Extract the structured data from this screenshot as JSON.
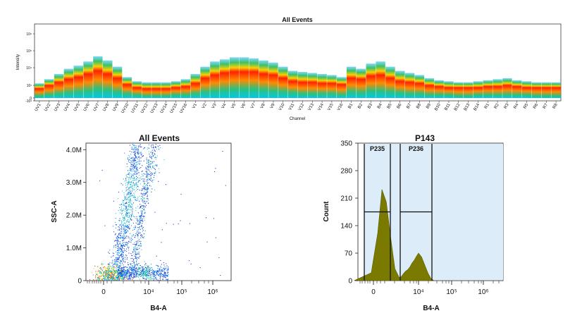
{
  "spectrum": {
    "title": "All Events",
    "ylabel": "Intensity",
    "xlabel": "Channel",
    "ytick_labels": [
      "10⁶",
      "10⁵",
      "10⁴",
      "10¹",
      "0",
      "-10³"
    ],
    "channels": [
      "UV1",
      "UV2",
      "UV3",
      "UV4",
      "UV5",
      "UV6",
      "UV7",
      "UV8",
      "UV9",
      "UV10",
      "UV11",
      "UV12",
      "UV13",
      "UV14",
      "UV15",
      "UV16",
      "V1",
      "V2",
      "V3",
      "V4",
      "V5",
      "V6",
      "V7",
      "V8",
      "V9",
      "V10",
      "V11",
      "V12",
      "V13",
      "V14",
      "V15",
      "V16",
      "B1",
      "B2",
      "B3",
      "B4",
      "B5",
      "B6",
      "B7",
      "B8",
      "B9",
      "B10",
      "B11",
      "B12",
      "B13",
      "B14",
      "R1",
      "R2",
      "R3",
      "R4",
      "R5",
      "R6",
      "R7",
      "R8"
    ]
  },
  "chart_data": [
    {
      "type": "heatmap",
      "title": "All Events",
      "xlabel": "Channel",
      "ylabel": "Intensity",
      "categories": [
        "UV1",
        "UV2",
        "UV3",
        "UV4",
        "UV5",
        "UV6",
        "UV7",
        "UV8",
        "UV9",
        "UV10",
        "UV11",
        "UV12",
        "UV13",
        "UV14",
        "UV15",
        "UV16",
        "V1",
        "V2",
        "V3",
        "V4",
        "V5",
        "V6",
        "V7",
        "V8",
        "V9",
        "V10",
        "V11",
        "V12",
        "V13",
        "V14",
        "V15",
        "V16",
        "B1",
        "B2",
        "B3",
        "B4",
        "B5",
        "B6",
        "B7",
        "B8",
        "B9",
        "B10",
        "B11",
        "B12",
        "B13",
        "B14",
        "R1",
        "R2",
        "R3",
        "R4",
        "R5",
        "R6",
        "R7",
        "R8"
      ],
      "upper_log10": [
        1.4,
        1.8,
        2.3,
        2.8,
        3.1,
        3.5,
        4.0,
        3.6,
        3.0,
        2.0,
        1.6,
        1.5,
        1.5,
        1.5,
        1.6,
        1.8,
        2.3,
        3.0,
        3.5,
        3.7,
        3.9,
        3.9,
        3.8,
        3.6,
        3.4,
        3.0,
        2.6,
        2.5,
        2.4,
        2.3,
        2.2,
        2.0,
        3.0,
        2.8,
        3.3,
        3.5,
        3.0,
        2.6,
        2.4,
        2.2,
        1.9,
        1.7,
        1.6,
        1.5,
        1.5,
        1.6,
        1.7,
        1.8,
        1.9,
        1.7,
        1.6,
        1.5,
        1.5,
        1.5
      ],
      "core_log10": [
        0.9,
        1.2,
        1.5,
        1.8,
        2.0,
        2.3,
        2.6,
        2.3,
        1.9,
        1.3,
        1.0,
        0.9,
        0.9,
        0.9,
        1.0,
        1.1,
        1.4,
        1.9,
        2.2,
        2.4,
        2.5,
        2.5,
        2.5,
        2.3,
        2.2,
        1.9,
        1.6,
        1.5,
        1.5,
        1.4,
        1.4,
        1.3,
        1.9,
        1.8,
        2.1,
        2.2,
        1.9,
        1.6,
        1.5,
        1.4,
        1.2,
        1.1,
        1.0,
        1.0,
        1.0,
        1.0,
        1.1,
        1.1,
        1.2,
        1.1,
        1.0,
        1.0,
        1.0,
        1.0
      ],
      "lower_log10": [
        0.2,
        0.3,
        0.4,
        0.5,
        0.6,
        0.7,
        0.9,
        0.8,
        0.6,
        0.4,
        0.3,
        0.2,
        0.2,
        0.2,
        0.3,
        0.3,
        0.4,
        0.6,
        0.7,
        0.8,
        0.9,
        0.9,
        0.9,
        0.8,
        0.7,
        0.6,
        0.5,
        0.4,
        0.4,
        0.4,
        0.4,
        0.3,
        0.6,
        0.5,
        0.7,
        0.7,
        0.6,
        0.5,
        0.4,
        0.4,
        0.3,
        0.3,
        0.3,
        0.2,
        0.2,
        0.3,
        0.3,
        0.3,
        0.3,
        0.3,
        0.3,
        0.2,
        0.2,
        0.2
      ]
    },
    {
      "type": "scatter",
      "title": "All Events",
      "xlabel": "B4-A",
      "ylabel": "SSC-A",
      "xtick_labels": [
        "0",
        "10⁴",
        "10⁵",
        "10⁶"
      ],
      "ytick_labels": [
        "0",
        "1.0M",
        "2.0M",
        "3.0M",
        "4.0M"
      ],
      "ylim": [
        0,
        4200000
      ],
      "populations": [
        {
          "x_log10_center": 2.3,
          "y_center": 180000,
          "y_spread": 150000
        },
        {
          "x_log10_center": 3.9,
          "y_center": 250000,
          "y_spread": 120000
        },
        {
          "x_log10_center": 3.5,
          "y_center": 2700000,
          "y_spread": 1200000
        },
        {
          "x_log10_center": 4.0,
          "y_center": 2600000,
          "y_spread": 1100000
        }
      ]
    },
    {
      "type": "area",
      "title": "P143",
      "xlabel": "B4-A",
      "ylabel": "Count",
      "xtick_labels": [
        "0",
        "10⁴",
        "10⁵",
        "10⁶"
      ],
      "ytick_labels": [
        "0",
        "70",
        "140",
        "210",
        "280",
        "350"
      ],
      "ylim": [
        0,
        350
      ],
      "color": "#7a7a00",
      "x_log10": [
        1.0,
        1.8,
        2.1,
        2.3,
        2.5,
        2.7,
        2.9,
        3.1,
        3.2,
        3.3,
        3.4,
        3.5,
        3.6,
        3.7,
        3.8,
        3.9,
        4.0,
        4.1,
        4.2,
        4.3,
        4.4,
        4.5
      ],
      "values": [
        0,
        20,
        120,
        232,
        200,
        110,
        30,
        8,
        10,
        18,
        24,
        28,
        35,
        45,
        52,
        62,
        70,
        60,
        40,
        20,
        5,
        0
      ],
      "gates": [
        {
          "name": "P235",
          "level": 175
        },
        {
          "name": "P236",
          "level": 175
        }
      ]
    }
  ]
}
